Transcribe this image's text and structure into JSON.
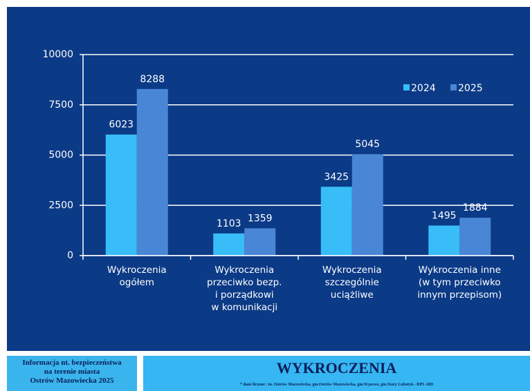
{
  "chart_data": {
    "type": "bar",
    "categories": [
      "Wykroczenia\nogółem",
      "Wykroczenia\nprzeciwko bezp.\ni porządkowi\nw komunikacji",
      "Wykroczenia\nszczególnie\nuciążliwe",
      "Wykroczenia inne\n(w tym przeciwko\ninnym przepisom)"
    ],
    "series": [
      {
        "name": "2024",
        "color": "#38bdf8",
        "values": [
          6023,
          1103,
          3425,
          1495
        ]
      },
      {
        "name": "2025",
        "color": "#4a86d6",
        "values": [
          8288,
          1359,
          5045,
          1884
        ]
      }
    ],
    "ylim": [
      0,
      10000
    ],
    "yticks": [
      0,
      2500,
      5000,
      7500,
      10000
    ],
    "grid": true,
    "legend": "top-right"
  },
  "footer": {
    "left": [
      "Informacja nt. bezpieczeństwa",
      "na terenie miasta",
      "Ostrów Mazowiecka  2025"
    ],
    "title": "WYKROCZENIA",
    "note": "* dane liczone : m. Ostrów Mazowiecka, gm.Ostrów Mazowiecka, gm.Wąsewo, gm.Stary Lubotyń - RPI +RD"
  }
}
